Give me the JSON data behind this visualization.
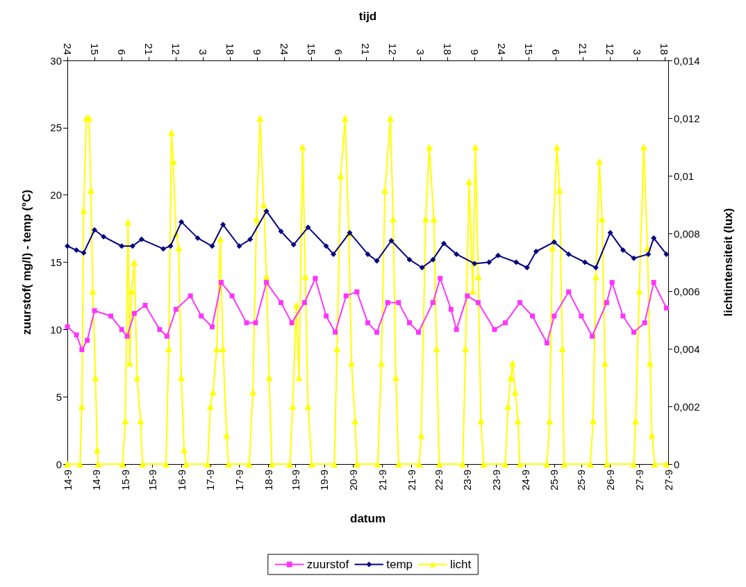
{
  "chart_data": {
    "type": "line",
    "xlabel": "datum",
    "x2label": "tijd",
    "ylabel": "zuurstof( mg/l) - temp (°C)",
    "y2label": "lichtintensiteit (lux)",
    "xlim": [
      "--09-14T00:00",
      "--09-27T20:00"
    ],
    "xticks": [
      {
        "value": "--09-14T00:00",
        "label": "14-9"
      },
      {
        "value": "--09-14T16:00",
        "label": "14-9"
      },
      {
        "value": "--09-15T08:00",
        "label": "15-9"
      },
      {
        "value": "--09-15T23:00",
        "label": "15-9"
      },
      {
        "value": "--09-16T15:00",
        "label": "16-9"
      },
      {
        "value": "--09-17T07:00",
        "label": "17-9"
      },
      {
        "value": "--09-17T23:00",
        "label": "17-9"
      },
      {
        "value": "--09-18T15:00",
        "label": "18-9"
      },
      {
        "value": "--09-19T06:00",
        "label": "19-9"
      },
      {
        "value": "--09-19T22:00",
        "label": "19-9"
      },
      {
        "value": "--09-20T14:00",
        "label": "20-9"
      },
      {
        "value": "--09-21T06:00",
        "label": "21-9"
      },
      {
        "value": "--09-21T22:00",
        "label": "21-9"
      },
      {
        "value": "--09-22T13:00",
        "label": "22-9"
      },
      {
        "value": "--09-23T05:00",
        "label": "23-9"
      },
      {
        "value": "--09-23T21:00",
        "label": "23-9"
      },
      {
        "value": "--09-24T13:00",
        "label": "24-9"
      },
      {
        "value": "--09-25T05:00",
        "label": "25-9"
      },
      {
        "value": "--09-25T20:00",
        "label": "25-9"
      },
      {
        "value": "--09-26T12:00",
        "label": "26-9"
      },
      {
        "value": "--09-27T04:00",
        "label": "27-9"
      },
      {
        "value": "--09-27T20:00",
        "label": "27-9"
      }
    ],
    "x2lim": [
      "--09-14T00:00",
      "--09-27T20:00"
    ],
    "x2ticks": [
      {
        "value": "--09-14T00:00",
        "label": "24"
      },
      {
        "value": "--09-14T15:00",
        "label": "15"
      },
      {
        "value": "--09-15T06:00",
        "label": "6"
      },
      {
        "value": "--09-15T21:00",
        "label": "21"
      },
      {
        "value": "--09-16T12:00",
        "label": "12"
      },
      {
        "value": "--09-17T03:00",
        "label": "3"
      },
      {
        "value": "--09-17T18:00",
        "label": "18"
      },
      {
        "value": "--09-18T09:00",
        "label": "9"
      },
      {
        "value": "--09-19T00:00",
        "label": "24"
      },
      {
        "value": "--09-19T15:00",
        "label": "15"
      },
      {
        "value": "--09-20T06:00",
        "label": "6"
      },
      {
        "value": "--09-20T21:00",
        "label": "21"
      },
      {
        "value": "--09-21T12:00",
        "label": "12"
      },
      {
        "value": "--09-22T03:00",
        "label": "3"
      },
      {
        "value": "--09-22T18:00",
        "label": "18"
      },
      {
        "value": "--09-23T09:00",
        "label": "9"
      },
      {
        "value": "--09-24T00:00",
        "label": "24"
      },
      {
        "value": "--09-24T15:00",
        "label": "15"
      },
      {
        "value": "--09-25T06:00",
        "label": "6"
      },
      {
        "value": "--09-25T21:00",
        "label": "21"
      },
      {
        "value": "--09-26T12:00",
        "label": "12"
      },
      {
        "value": "--09-27T03:00",
        "label": "3"
      },
      {
        "value": "--09-27T18:00",
        "label": "18"
      }
    ],
    "ylim": [
      0,
      30
    ],
    "yticks": [
      0,
      5,
      10,
      15,
      20,
      25,
      30
    ],
    "y2lim": [
      0,
      0.014
    ],
    "y2ticks": [
      {
        "value": 0,
        "label": "0"
      },
      {
        "value": 0.002,
        "label": "0,002"
      },
      {
        "value": 0.004,
        "label": "0,004"
      },
      {
        "value": 0.006,
        "label": "0,006"
      },
      {
        "value": 0.008,
        "label": "0,008"
      },
      {
        "value": 0.01,
        "label": "0,01"
      },
      {
        "value": 0.012,
        "label": "0,012"
      },
      {
        "value": 0.014,
        "label": "0,014"
      }
    ],
    "grid": false,
    "legend": "bottom",
    "series": [
      {
        "name": "zuurstof",
        "color": "#ff33ff",
        "marker": "square",
        "x": [
          "--09-14T00:00",
          "--09-14T05:00",
          "--09-14T08:00",
          "--09-14T11:00",
          "--09-14T15:00",
          "--09-15T00:00",
          "--09-15T06:00",
          "--09-15T09:00",
          "--09-15T13:00",
          "--09-15T19:00",
          "--09-16T03:00",
          "--09-16T07:00",
          "--09-16T12:00",
          "--09-16T20:00",
          "--09-17T02:00",
          "--09-17T08:00",
          "--09-17T13:00",
          "--09-17T19:00",
          "--09-18T03:00",
          "--09-18T08:00",
          "--09-18T14:00",
          "--09-18T22:00",
          "--09-19T04:00",
          "--09-19T11:00",
          "--09-19T17:00",
          "--09-19T23:00",
          "--09-20T04:00",
          "--09-20T10:00",
          "--09-20T16:00",
          "--09-20T22:00",
          "--09-21T03:00",
          "--09-21T09:00",
          "--09-21T15:00",
          "--09-21T21:00",
          "--09-22T02:00",
          "--09-22T10:00",
          "--09-22T14:00",
          "--09-22T20:00",
          "--09-22T23:00",
          "--09-23T05:00",
          "--09-23T11:00",
          "--09-23T20:00",
          "--09-24T02:00",
          "--09-24T10:00",
          "--09-24T17:00",
          "--09-25T01:00",
          "--09-25T05:00",
          "--09-25T13:00",
          "--09-25T20:00",
          "--09-26T02:00",
          "--09-26T10:00",
          "--09-26T13:00",
          "--09-26T19:00",
          "--09-27T01:00",
          "--09-27T07:00",
          "--09-27T12:00",
          "--09-27T19:00"
        ],
        "values": [
          10.2,
          9.6,
          8.5,
          9.2,
          11.4,
          11.0,
          10.0,
          9.5,
          11.2,
          11.8,
          10.0,
          9.5,
          11.5,
          12.5,
          11.0,
          10.2,
          13.5,
          12.5,
          10.5,
          10.5,
          13.5,
          12.0,
          10.5,
          12.0,
          13.8,
          11.0,
          9.8,
          12.5,
          12.8,
          10.5,
          9.8,
          12.0,
          12.0,
          10.5,
          9.8,
          12.0,
          13.8,
          11.5,
          10.0,
          12.5,
          12.0,
          10.0,
          10.5,
          12.0,
          11.0,
          9.0,
          11.0,
          12.8,
          11.0,
          9.5,
          12.0,
          13.5,
          11.0,
          9.8,
          10.5,
          13.5,
          11.6
        ]
      },
      {
        "name": "temp",
        "color": "#000080",
        "marker": "diamond",
        "x": [
          "--09-14T00:00",
          "--09-14T05:00",
          "--09-14T09:00",
          "--09-14T15:00",
          "--09-14T20:00",
          "--09-15T06:00",
          "--09-15T12:00",
          "--09-15T17:00",
          "--09-16T05:00",
          "--09-16T09:00",
          "--09-16T15:00",
          "--09-17T00:00",
          "--09-17T08:00",
          "--09-17T14:00",
          "--09-17T23:00",
          "--09-18T05:00",
          "--09-18T14:00",
          "--09-18T22:00",
          "--09-19T05:00",
          "--09-19T13:00",
          "--09-19T23:00",
          "--09-20T03:00",
          "--09-20T12:00",
          "--09-20T22:00",
          "--09-21T03:00",
          "--09-21T11:00",
          "--09-21T21:00",
          "--09-22T04:00",
          "--09-22T10:00",
          "--09-22T16:00",
          "--09-22T23:00",
          "--09-23T09:00",
          "--09-23T17:00",
          "--09-23T22:00",
          "--09-24T08:00",
          "--09-24T14:00",
          "--09-24T19:00",
          "--09-25T05:00",
          "--09-25T13:00",
          "--09-25T22:00",
          "--09-26T04:00",
          "--09-26T12:00",
          "--09-26T19:00",
          "--09-27T01:00",
          "--09-27T09:00",
          "--09-27T12:00",
          "--09-27T19:00"
        ],
        "values": [
          16.2,
          15.9,
          15.7,
          17.4,
          16.9,
          16.2,
          16.2,
          16.7,
          16.0,
          16.2,
          18.0,
          16.8,
          16.2,
          17.8,
          16.2,
          16.7,
          18.8,
          17.3,
          16.3,
          17.6,
          16.2,
          15.6,
          17.2,
          15.6,
          15.1,
          16.6,
          15.2,
          14.6,
          15.2,
          16.4,
          15.6,
          14.9,
          15.0,
          15.5,
          15.0,
          14.6,
          15.8,
          16.5,
          15.6,
          15.0,
          14.6,
          17.2,
          15.9,
          15.3,
          15.6,
          16.8,
          15.6
        ]
      },
      {
        "name": "licht",
        "color": "#ffff00",
        "marker": "triangle",
        "axis": "y2",
        "x": [
          "--09-14T00:00",
          "--09-14T07:00",
          "--09-14T08:00",
          "--09-14T09:00",
          "--09-14T10:30",
          "--09-14T12:00",
          "--09-14T13:00",
          "--09-14T14:00",
          "--09-14T15:30",
          "--09-14T16:30",
          "--09-14T17:00",
          "--09-15T06:30",
          "--09-15T08:00",
          "--09-15T09:30",
          "--09-15T10:30",
          "--09-15T11:30",
          "--09-15T13:00",
          "--09-15T14:30",
          "--09-15T16:30",
          "--09-15T17:30",
          "--09-16T06:30",
          "--09-16T08:00",
          "--09-16T09:30",
          "--09-16T10:30",
          "--09-16T12:00",
          "--09-16T13:30",
          "--09-16T15:00",
          "--09-16T16:30",
          "--09-16T17:30",
          "--09-17T05:30",
          "--09-17T07:00",
          "--09-17T08:30",
          "--09-17T10:30",
          "--09-17T12:30",
          "--09-17T14:00",
          "--09-17T16:00",
          "--09-17T17:00",
          "--09-18T04:30",
          "--09-18T06:30",
          "--09-18T08:30",
          "--09-18T10:30",
          "--09-18T12:30",
          "--09-18T14:00",
          "--09-18T15:30",
          "--09-18T17:00",
          "--09-19T03:00",
          "--09-19T04:30",
          "--09-19T06:30",
          "--09-19T08:00",
          "--09-19T10:00",
          "--09-19T11:30",
          "--09-19T13:00",
          "--09-19T15:00",
          "--09-20T03:30",
          "--09-20T05:00",
          "--09-20T07:00",
          "--09-20T09:30",
          "--09-20T11:30",
          "--09-20T13:00",
          "--09-20T15:00",
          "--09-20T16:00",
          "--09-21T03:30",
          "--09-21T05:30",
          "--09-21T07:30",
          "--09-21T10:30",
          "--09-21T12:00",
          "--09-21T13:30",
          "--09-21T15:00",
          "--09-22T02:30",
          "--09-22T03:30",
          "--09-22T06:00",
          "--09-22T08:00",
          "--09-22T10:30",
          "--09-22T12:00",
          "--09-22T13:30",
          "--09-23T02:30",
          "--09-23T04:00",
          "--09-23T06:00",
          "--09-23T08:00",
          "--09-23T09:30",
          "--09-23T11:00",
          "--09-23T12:30",
          "--09-23T14:00",
          "--09-24T02:00",
          "--09-24T03:30",
          "--09-24T05:00",
          "--09-24T06:00",
          "--09-24T07:30",
          "--09-24T09:00",
          "--09-24T10:00",
          "--09-25T01:00",
          "--09-25T02:30",
          "--09-25T04:00",
          "--09-25T06:30",
          "--09-25T08:00",
          "--09-25T09:30",
          "--09-25T10:30",
          "--09-26T01:00",
          "--09-26T02:30",
          "--09-26T04:00",
          "--09-26T06:00",
          "--09-26T07:30",
          "--09-26T09:00",
          "--09-26T10:00",
          "--09-27T01:00",
          "--09-27T02:00",
          "--09-27T04:00",
          "--09-27T06:30",
          "--09-27T08:30",
          "--09-27T10:00",
          "--09-27T11:00",
          "--09-27T12:30",
          "--09-27T19:00"
        ],
        "values": [
          0,
          0,
          0.002,
          0.0088,
          0.012,
          0.012,
          0.0095,
          0.006,
          0.003,
          0.0005,
          0,
          0,
          0.0015,
          0.0084,
          0.0035,
          0.006,
          0.007,
          0.003,
          0.0015,
          0,
          0,
          0.004,
          0.0115,
          0.0105,
          0.008,
          0.0075,
          0.003,
          0.0005,
          0,
          0,
          0.002,
          0.0025,
          0.004,
          0.0078,
          0.004,
          0.001,
          0,
          0,
          0.0025,
          0.0085,
          0.012,
          0.009,
          0.0065,
          0.003,
          0,
          0,
          0.002,
          0.0055,
          0.003,
          0.011,
          0.0065,
          0.002,
          0,
          0,
          0.004,
          0.01,
          0.012,
          0.008,
          0.0035,
          0.0015,
          0,
          0,
          0.0035,
          0.0095,
          0.012,
          0.0085,
          0.003,
          0,
          0,
          0.001,
          0.0085,
          0.011,
          0.0085,
          0.004,
          0,
          0,
          0.004,
          0.0098,
          0.006,
          0.011,
          0.0065,
          0.0015,
          0,
          0,
          0.002,
          0.003,
          0.0035,
          0.0025,
          0.0015,
          0,
          0,
          0.0015,
          0.0075,
          0.011,
          0.0095,
          0.004,
          0,
          0,
          0.0015,
          0.0065,
          0.0105,
          0.0085,
          0.0035,
          0,
          0,
          0.0015,
          0.006,
          0.011,
          0.0075,
          0.0035,
          0.001,
          0,
          0
        ]
      }
    ]
  }
}
